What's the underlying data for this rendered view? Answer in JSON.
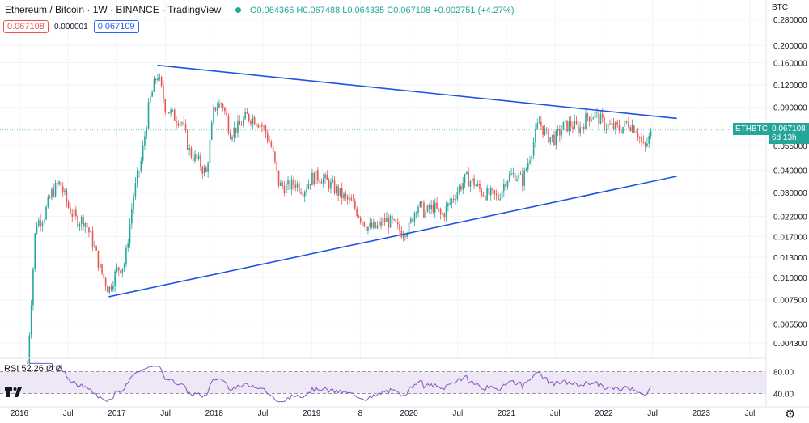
{
  "header": {
    "title": "Ethereum / Bitcoin · 1W · BINANCE · TradingView",
    "ohlc": "O0.064366 H0.067488 L0.064335 C0.067108 +0.002751 (+4.27%)"
  },
  "price_boxes": {
    "bid": "0.067108",
    "spread": "0.000001",
    "ask": "0.067109"
  },
  "currency_label": "BTC",
  "symbol_tag": "ETHBTC",
  "last_price": "0.067108",
  "countdown": "6d 13h",
  "rsi_label": "RSI 52.26 Ø Ø",
  "colors": {
    "up": "#26a69a",
    "down": "#ef5350",
    "trendline": "#1e53e5",
    "rsi": "#7e57c2",
    "rsi_band": "#ede7f6"
  },
  "chart_data": {
    "type": "candlestick",
    "scale": "log",
    "price_axis_ticks": [
      "0.280000",
      "0.200000",
      "0.160000",
      "0.120000",
      "0.090000",
      "0.055000",
      "0.040000",
      "0.030000",
      "0.022000",
      "0.017000",
      "0.013000",
      "0.010000",
      "0.007500",
      "0.005500",
      "0.004300"
    ],
    "time_axis_ticks": [
      "2016",
      "Jul",
      "2017",
      "Jul",
      "2018",
      "Jul",
      "2019",
      "8",
      "2020",
      "Jul",
      "2021",
      "Jul",
      "2022",
      "Jul",
      "2023",
      "Jul"
    ],
    "weekly_close_path": [
      [
        "2016-02",
        0.0033
      ],
      [
        "2016-03",
        0.02
      ],
      [
        "2016-04",
        0.022
      ],
      [
        "2016-05",
        0.03
      ],
      [
        "2016-06",
        0.034
      ],
      [
        "2016-07",
        0.025
      ],
      [
        "2016-08",
        0.021
      ],
      [
        "2016-09",
        0.021
      ],
      [
        "2016-10",
        0.016
      ],
      [
        "2016-11",
        0.011
      ],
      [
        "2016-12",
        0.0085
      ],
      [
        "2017-01",
        0.011
      ],
      [
        "2017-02",
        0.012
      ],
      [
        "2017-03",
        0.028
      ],
      [
        "2017-04",
        0.045
      ],
      [
        "2017-05",
        0.095
      ],
      [
        "2017-06",
        0.14
      ],
      [
        "2017-07",
        0.09
      ],
      [
        "2017-08",
        0.08
      ],
      [
        "2017-09",
        0.075
      ],
      [
        "2017-10",
        0.05
      ],
      [
        "2017-11",
        0.045
      ],
      [
        "2017-12",
        0.038
      ],
      [
        "2018-01",
        0.09
      ],
      [
        "2018-02",
        0.095
      ],
      [
        "2018-03",
        0.065
      ],
      [
        "2018-04",
        0.07
      ],
      [
        "2018-05",
        0.08
      ],
      [
        "2018-06",
        0.078
      ],
      [
        "2018-07",
        0.07
      ],
      [
        "2018-08",
        0.055
      ],
      [
        "2018-09",
        0.033
      ],
      [
        "2018-10",
        0.032
      ],
      [
        "2018-11",
        0.034
      ],
      [
        "2018-12",
        0.031
      ],
      [
        "2019-01",
        0.036
      ],
      [
        "2019-02",
        0.037
      ],
      [
        "2019-03",
        0.034
      ],
      [
        "2019-04",
        0.031
      ],
      [
        "2019-05",
        0.028
      ],
      [
        "2019-06",
        0.026
      ],
      [
        "2019-07",
        0.022
      ],
      [
        "2019-08",
        0.019
      ],
      [
        "2019-09",
        0.019
      ],
      [
        "2019-10",
        0.021
      ],
      [
        "2019-11",
        0.02
      ],
      [
        "2019-12",
        0.018
      ],
      [
        "2020-01",
        0.019
      ],
      [
        "2020-02",
        0.026
      ],
      [
        "2020-03",
        0.023
      ],
      [
        "2020-04",
        0.025
      ],
      [
        "2020-05",
        0.022
      ],
      [
        "2020-06",
        0.026
      ],
      [
        "2020-07",
        0.031
      ],
      [
        "2020-08",
        0.036
      ],
      [
        "2020-09",
        0.034
      ],
      [
        "2020-10",
        0.03
      ],
      [
        "2020-11",
        0.029
      ],
      [
        "2020-12",
        0.028
      ],
      [
        "2021-01",
        0.036
      ],
      [
        "2021-02",
        0.038
      ],
      [
        "2021-03",
        0.035
      ],
      [
        "2021-04",
        0.05
      ],
      [
        "2021-05",
        0.075
      ],
      [
        "2021-06",
        0.062
      ],
      [
        "2021-07",
        0.06
      ],
      [
        "2021-08",
        0.07
      ],
      [
        "2021-09",
        0.072
      ],
      [
        "2021-10",
        0.068
      ],
      [
        "2021-11",
        0.08
      ],
      [
        "2021-12",
        0.082
      ],
      [
        "2022-01",
        0.072
      ],
      [
        "2022-02",
        0.07
      ],
      [
        "2022-03",
        0.068
      ],
      [
        "2022-04",
        0.074
      ],
      [
        "2022-05",
        0.068
      ],
      [
        "2022-06",
        0.052
      ],
      [
        "2022-07",
        0.067108
      ]
    ],
    "trendlines": [
      {
        "name": "",
        "from": [
          "2017-06",
          0.155
        ],
        "to": [
          "2022-10",
          0.078
        ]
      },
      {
        "name": "",
        "from": [
          "2016-12",
          0.0078
        ],
        "to": [
          "2022-10",
          0.037
        ]
      }
    ],
    "rsi": {
      "levels": [
        80,
        40
      ],
      "ylim": [
        20,
        100
      ],
      "axis_ticks": [
        "80.00",
        "40.00"
      ]
    }
  }
}
